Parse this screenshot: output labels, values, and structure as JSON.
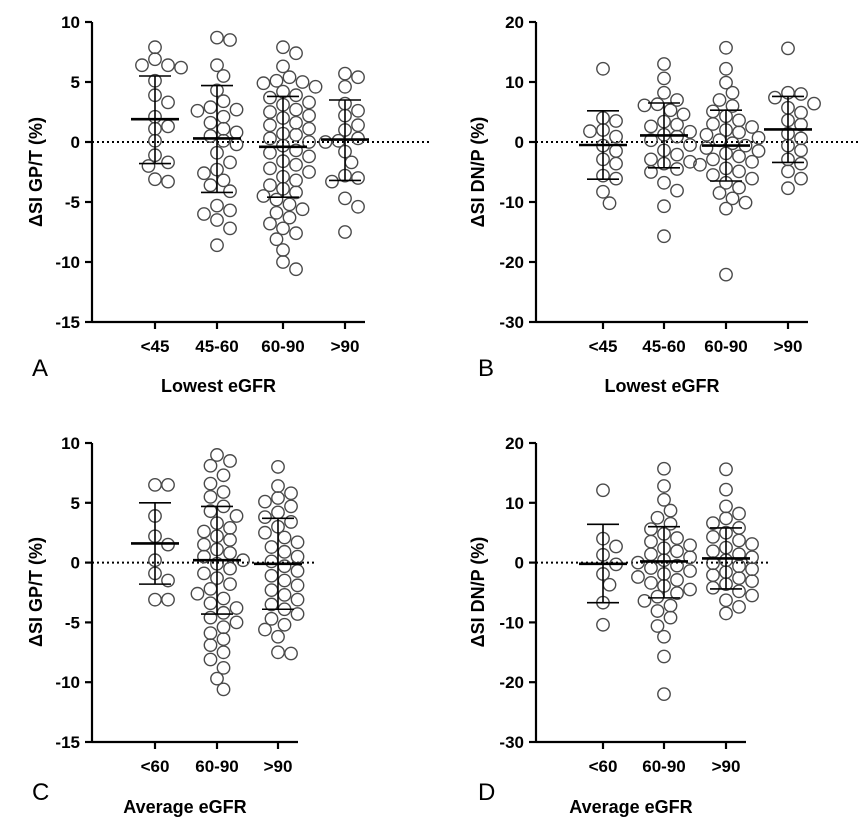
{
  "chart_data": [
    {
      "panel_letter": "A",
      "type": "scatter",
      "xlabel": "Lowest eGFR",
      "ylabel": "ΔSI GP/T (%)",
      "ylim": [
        -15,
        10
      ],
      "yticks": [
        10,
        5,
        0,
        -5,
        -10,
        -15
      ],
      "reference_line": 0,
      "categories": [
        "<45",
        "45-60",
        "60-90",
        ">90"
      ],
      "groups": [
        {
          "category": "<45",
          "mean": 1.9,
          "sd_upper": 5.5,
          "sd_lower": -1.8,
          "values": [
            7.9,
            6.9,
            6.4,
            6.4,
            6.2,
            5.1,
            3.9,
            3.3,
            2.1,
            1.3,
            1.1,
            0.1,
            -1.1,
            -1.7,
            -2.0,
            -3.3,
            -3.1
          ]
        },
        {
          "category": "45-60",
          "mean": 0.3,
          "sd_upper": 4.7,
          "sd_lower": -4.2,
          "values": [
            8.7,
            8.5,
            6.4,
            5.5,
            4.3,
            3.4,
            2.9,
            2.7,
            2.6,
            2.1,
            1.6,
            1.1,
            0.8,
            0.5,
            0.1,
            -0.2,
            -0.9,
            -1.7,
            -2.3,
            -2.6,
            -3.2,
            -3.6,
            -4.1,
            -5.3,
            -5.7,
            -6.0,
            -6.5,
            -7.2,
            -8.6
          ]
        },
        {
          "category": "60-90",
          "mean": -0.4,
          "sd_upper": 3.8,
          "sd_lower": -4.6,
          "values": [
            7.9,
            7.4,
            6.3,
            5.4,
            5.1,
            5.0,
            4.9,
            4.6,
            4.2,
            3.9,
            3.7,
            3.3,
            3.1,
            2.7,
            2.5,
            2.2,
            2.0,
            1.6,
            1.4,
            1.1,
            0.7,
            0.6,
            0.3,
            0.0,
            -0.3,
            -0.7,
            -0.9,
            -1.2,
            -1.6,
            -1.9,
            -2.2,
            -2.5,
            -2.9,
            -3.2,
            -3.6,
            -3.9,
            -4.2,
            -4.5,
            -4.8,
            -5.2,
            -5.6,
            -5.9,
            -6.3,
            -6.8,
            -7.2,
            -7.6,
            -8.1,
            -9.0,
            -10.0,
            -10.6
          ]
        },
        {
          "category": ">90",
          "mean": 0.2,
          "sd_upper": 3.5,
          "sd_lower": -3.2,
          "values": [
            5.7,
            5.4,
            4.6,
            3.2,
            2.6,
            2.2,
            1.4,
            1.0,
            0.3,
            0.1,
            0.0,
            -0.8,
            -1.7,
            -2.8,
            -3.0,
            -3.3,
            -4.7,
            -5.4,
            -7.5
          ]
        }
      ]
    },
    {
      "panel_letter": "B",
      "type": "scatter",
      "xlabel": "Lowest eGFR",
      "ylabel": "ΔSI DN/P (%)",
      "ylim": [
        -30,
        20
      ],
      "yticks": [
        20,
        10,
        0,
        -10,
        -20,
        -30
      ],
      "reference_line": 0,
      "categories": [
        "<45",
        "45-60",
        "60-90",
        ">90"
      ],
      "groups": [
        {
          "category": "<45",
          "mean": -0.5,
          "sd_upper": 5.2,
          "sd_lower": -6.2,
          "values": [
            12.2,
            4.0,
            3.5,
            2.0,
            1.8,
            0.9,
            -0.6,
            -1.5,
            -2.9,
            -3.6,
            -5.6,
            -6.1,
            -8.3,
            -10.2
          ]
        },
        {
          "category": "45-60",
          "mean": 1.1,
          "sd_upper": 6.5,
          "sd_lower": -4.3,
          "values": [
            13.0,
            10.6,
            8.2,
            7.0,
            6.3,
            6.1,
            5.3,
            4.6,
            3.4,
            2.9,
            2.6,
            1.7,
            1.2,
            0.9,
            0.3,
            -0.5,
            -1.4,
            -2.1,
            -2.9,
            -3.3,
            -3.6,
            -4.5,
            -5.0,
            -6.8,
            -8.1,
            -10.7,
            -15.7
          ]
        },
        {
          "category": "60-90",
          "mean": -0.6,
          "sd_upper": 5.3,
          "sd_lower": -6.5,
          "values": [
            15.7,
            12.2,
            9.9,
            8.2,
            7.0,
            6.0,
            5.1,
            4.3,
            3.6,
            3.0,
            2.5,
            2.0,
            1.6,
            1.2,
            0.7,
            0.3,
            -0.2,
            -0.6,
            -1.0,
            -1.5,
            -1.9,
            -2.4,
            -2.9,
            -3.3,
            -3.8,
            -4.4,
            -4.9,
            -5.5,
            -6.1,
            -6.8,
            -7.6,
            -8.5,
            -9.4,
            -10.1,
            -11.1,
            -22.1
          ]
        },
        {
          "category": ">90",
          "mean": 2.1,
          "sd_upper": 7.6,
          "sd_lower": -3.4,
          "values": [
            15.6,
            8.2,
            8.0,
            7.4,
            6.4,
            5.7,
            4.9,
            3.6,
            2.9,
            1.4,
            0.6,
            -0.6,
            -1.4,
            -2.9,
            -3.6,
            -4.9,
            -6.1,
            -7.7
          ]
        }
      ]
    },
    {
      "panel_letter": "C",
      "type": "scatter",
      "xlabel": "Average eGFR",
      "ylabel": "ΔSI GP/T (%)",
      "ylim": [
        -15,
        10
      ],
      "yticks": [
        10,
        5,
        0,
        -5,
        -10,
        -15
      ],
      "reference_line": 0,
      "categories": [
        "<60",
        "60-90",
        ">90"
      ],
      "groups": [
        {
          "category": "<60",
          "mean": 1.6,
          "sd_upper": 5.0,
          "sd_lower": -1.8,
          "values": [
            6.5,
            6.5,
            3.9,
            2.2,
            1.5,
            0.2,
            -0.9,
            -1.5,
            -3.1,
            -3.1
          ]
        },
        {
          "category": "60-90",
          "mean": 0.2,
          "sd_upper": 4.7,
          "sd_lower": -4.3,
          "values": [
            9.0,
            8.5,
            8.1,
            7.3,
            6.6,
            5.9,
            5.5,
            4.7,
            4.3,
            3.9,
            3.3,
            2.9,
            2.6,
            2.2,
            1.9,
            1.5,
            1.1,
            0.8,
            0.5,
            0.2,
            -0.1,
            -0.5,
            -0.9,
            -1.3,
            -1.8,
            -2.2,
            -2.6,
            -3.0,
            -3.4,
            -3.8,
            -4.2,
            -4.6,
            -5.0,
            -5.4,
            -5.9,
            -6.4,
            -6.9,
            -7.5,
            -8.1,
            -8.8,
            -9.7,
            -10.6
          ]
        },
        {
          "category": ">90",
          "mean": -0.1,
          "sd_upper": 3.7,
          "sd_lower": -3.9,
          "values": [
            8.0,
            6.4,
            5.8,
            5.4,
            5.1,
            4.7,
            4.2,
            3.8,
            3.4,
            3.0,
            2.5,
            2.1,
            1.7,
            1.3,
            0.9,
            0.5,
            0.1,
            -0.3,
            -0.7,
            -1.1,
            -1.5,
            -1.9,
            -2.3,
            -2.7,
            -3.1,
            -3.5,
            -3.9,
            -4.3,
            -4.7,
            -5.2,
            -5.6,
            -6.2,
            -7.5,
            -7.6
          ]
        }
      ]
    },
    {
      "panel_letter": "D",
      "type": "scatter",
      "xlabel": "Average eGFR",
      "ylabel": "ΔSI DN/P (%)",
      "ylim": [
        -30,
        20
      ],
      "yticks": [
        20,
        10,
        0,
        -10,
        -20,
        -30
      ],
      "reference_line": 0,
      "categories": [
        "<60",
        "60-90",
        ">90"
      ],
      "groups": [
        {
          "category": "<60",
          "mean": -0.2,
          "sd_upper": 6.4,
          "sd_lower": -6.7,
          "values": [
            12.1,
            4.0,
            2.7,
            1.3,
            -0.3,
            -1.9,
            -3.7,
            -6.7,
            -10.4
          ]
        },
        {
          "category": "60-90",
          "mean": 0.2,
          "sd_upper": 6.0,
          "sd_lower": -5.9,
          "values": [
            15.7,
            12.8,
            10.5,
            8.7,
            7.5,
            6.5,
            5.6,
            4.8,
            4.1,
            3.5,
            2.9,
            2.4,
            1.9,
            1.4,
            0.9,
            0.4,
            0.0,
            -0.5,
            -0.9,
            -1.4,
            -1.9,
            -2.4,
            -2.9,
            -3.4,
            -3.9,
            -4.5,
            -5.1,
            -5.7,
            -6.4,
            -7.2,
            -8.1,
            -9.2,
            -10.6,
            -12.4,
            -15.7,
            -22.0
          ]
        },
        {
          "category": ">90",
          "mean": 0.7,
          "sd_upper": 5.8,
          "sd_lower": -4.4,
          "values": [
            15.6,
            12.2,
            9.4,
            8.2,
            7.4,
            6.6,
            5.8,
            5.0,
            4.3,
            3.7,
            3.1,
            2.5,
            1.9,
            1.4,
            0.9,
            0.4,
            -0.1,
            -0.6,
            -1.1,
            -1.6,
            -2.1,
            -2.6,
            -3.1,
            -3.6,
            -4.2,
            -4.8,
            -5.5,
            -6.3,
            -7.4,
            -8.5
          ]
        }
      ]
    }
  ]
}
